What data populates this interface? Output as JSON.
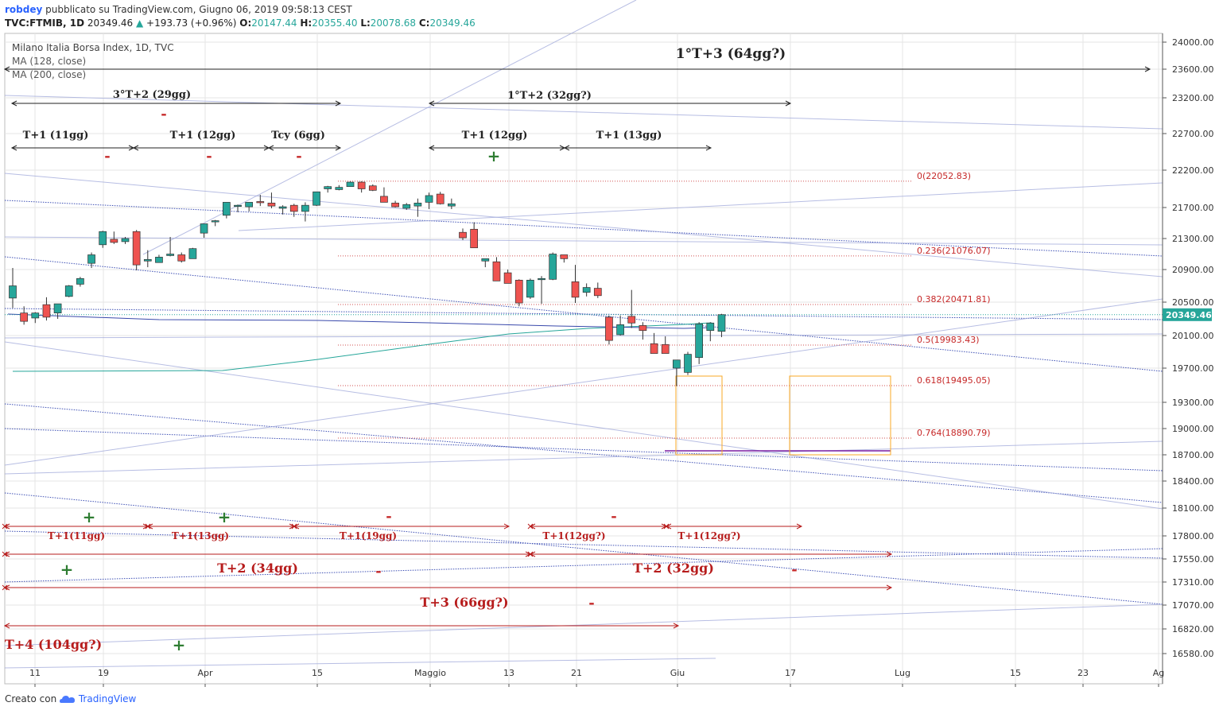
{
  "header": {
    "username": "robdey",
    "published": "pubblicato su TradingView.com, Giugno 06, 2019 09:58:13 CEST",
    "symbol": "TVC:FTMIB, 1D",
    "last": "20349.46",
    "change": "+193.73 (+0.96%)",
    "o_label": "O:",
    "o_value": "20147.44",
    "h_label": "H:",
    "h_value": "20355.40",
    "l_label": "L:",
    "l_value": "20078.68",
    "c_label": "C:",
    "c_value": "20349.46"
  },
  "legend": {
    "title": "Milano Italia Borsa Index, 1D, TVC",
    "ma1": "MA (128, close)",
    "ma2": "MA (200, close)"
  },
  "footer": {
    "created": "Creato con",
    "brand": "TradingView"
  },
  "colors": {
    "up": "#26a69a",
    "down": "#ef5350",
    "grid": "#e6e6e6",
    "fib": "#c62828",
    "trendline": "#3f51b5",
    "ma128": "#26a69a",
    "ma200": "#3949ab",
    "box": "#f9a825",
    "price_tag": "#26a69a",
    "cycle_red": "#b71c1c",
    "plus": "#2e7d32"
  },
  "chart_data": {
    "type": "candlestick",
    "title": "Milano Italia Borsa Index, 1D, TVC",
    "y_range": [
      16400,
      24100
    ],
    "y_ticks": [
      24000,
      23600,
      23200,
      22700,
      22200,
      21700,
      21300,
      20900,
      20500,
      20100,
      19700,
      19300,
      19000,
      18700,
      18400,
      18100,
      17800,
      17550,
      17310,
      17070,
      16820,
      16580
    ],
    "x_labels": [
      {
        "label": "11",
        "x": 44
      },
      {
        "label": "19",
        "x": 130
      },
      {
        "label": "Apr",
        "x": 258
      },
      {
        "label": "15",
        "x": 399
      },
      {
        "label": "Maggio",
        "x": 541
      },
      {
        "label": "13",
        "x": 640
      },
      {
        "label": "21",
        "x": 725
      },
      {
        "label": "Giu",
        "x": 852
      },
      {
        "label": "17",
        "x": 994
      },
      {
        "label": "Lug",
        "x": 1135
      },
      {
        "label": "15",
        "x": 1277
      },
      {
        "label": "23",
        "x": 1362
      },
      {
        "label": "Ag",
        "x": 1457
      }
    ],
    "last_price": "20349.46",
    "candles": [
      [
        20550,
        20920,
        20430,
        20700
      ],
      [
        20370,
        20450,
        20230,
        20270
      ],
      [
        20310,
        20380,
        20250,
        20370
      ],
      [
        20470,
        20560,
        20280,
        20320
      ],
      [
        20370,
        20480,
        20300,
        20480
      ],
      [
        20570,
        20710,
        20560,
        20700
      ],
      [
        20720,
        20810,
        20690,
        20790
      ],
      [
        20980,
        21120,
        20920,
        21090
      ],
      [
        21220,
        21400,
        21180,
        21390
      ],
      [
        21290,
        21390,
        21230,
        21250
      ],
      [
        21260,
        21320,
        21230,
        21300
      ],
      [
        21390,
        21410,
        20890,
        20960
      ],
      [
        21010,
        21150,
        20930,
        21030
      ],
      [
        20990,
        21090,
        20990,
        21060
      ],
      [
        21080,
        21320,
        21070,
        21100
      ],
      [
        21090,
        21120,
        20990,
        21010
      ],
      [
        21040,
        21180,
        21040,
        21170
      ],
      [
        21370,
        21450,
        21310,
        21490
      ],
      [
        21520,
        21540,
        21460,
        21530
      ],
      [
        21600,
        21760,
        21560,
        21770
      ],
      [
        21720,
        21740,
        21640,
        21730
      ],
      [
        21710,
        21770,
        21650,
        21770
      ],
      [
        21780,
        21870,
        21720,
        21770
      ],
      [
        21760,
        21900,
        21690,
        21720
      ],
      [
        21690,
        21730,
        21610,
        21710
      ],
      [
        21730,
        21750,
        21580,
        21650
      ],
      [
        21650,
        21770,
        21520,
        21730
      ],
      [
        21730,
        21900,
        21720,
        21910
      ],
      [
        21950,
        21990,
        21900,
        21980
      ],
      [
        21940,
        22000,
        21930,
        21970
      ],
      [
        21980,
        22050,
        21980,
        22040
      ],
      [
        22040,
        22050,
        21900,
        21950
      ],
      [
        21990,
        22010,
        21920,
        21930
      ],
      [
        21850,
        21970,
        21830,
        21770
      ],
      [
        21760,
        21790,
        21700,
        21710
      ],
      [
        21690,
        21760,
        21670,
        21740
      ],
      [
        21720,
        21820,
        21580,
        21760
      ],
      [
        21770,
        21900,
        21680,
        21860
      ],
      [
        21880,
        21910,
        21740,
        21750
      ],
      [
        21720,
        21820,
        21680,
        21750
      ],
      [
        21380,
        21430,
        21280,
        21310
      ],
      [
        21420,
        21510,
        21190,
        21180
      ],
      [
        21010,
        21030,
        20930,
        21040
      ],
      [
        21000,
        21060,
        20760,
        20760
      ],
      [
        20860,
        20900,
        20730,
        20730
      ],
      [
        20770,
        20780,
        20450,
        20490
      ],
      [
        20560,
        20790,
        20540,
        20770
      ],
      [
        20790,
        20820,
        20480,
        20790
      ],
      [
        20780,
        21120,
        20770,
        21100
      ],
      [
        21090,
        21080,
        20990,
        21040
      ],
      [
        20750,
        20960,
        20490,
        20560
      ],
      [
        20620,
        20730,
        20570,
        20680
      ],
      [
        20670,
        20740,
        20550,
        20580
      ],
      [
        20320,
        20340,
        19990,
        20040
      ],
      [
        20110,
        20340,
        20100,
        20230
      ],
      [
        20330,
        20650,
        20190,
        20250
      ],
      [
        20220,
        20260,
        20050,
        20160
      ],
      [
        20000,
        20130,
        19920,
        19880
      ],
      [
        19990,
        20090,
        19890,
        19880
      ],
      [
        19700,
        19780,
        19490,
        19800
      ],
      [
        19650,
        19900,
        19620,
        19870
      ],
      [
        19830,
        20260,
        19750,
        20240
      ],
      [
        20160,
        20260,
        20030,
        20250
      ],
      [
        20150,
        20360,
        20080,
        20350
      ]
    ],
    "fib_levels": [
      {
        "label": "0(22052.83)",
        "value": 22052.83
      },
      {
        "label": "0.236(21076.07)",
        "value": 21076.07
      },
      {
        "label": "0.382(20471.81)",
        "value": 20471.81
      },
      {
        "label": "0.5(19983.43)",
        "value": 19983.43
      },
      {
        "label": "0.618(19495.05)",
        "value": 19495.05
      },
      {
        "label": "0.764(18890.79)",
        "value": 18890.79
      }
    ],
    "cycle_annotations_top": [
      "1°T+3 (64gg?)",
      "3°T+2 (29gg)",
      "1°T+2 (32gg?)",
      "T+1 (11gg)",
      "T+1 (12gg)",
      "Tcy (6gg)",
      "T+1 (12gg)",
      "T+1 (13gg)"
    ],
    "cycle_annotations_bottom": [
      "T+1(11gg)",
      "T+1(13gg)",
      "T+1(19gg)",
      "T+1(12gg?)",
      "T+1(12gg?)",
      "T+2 (34gg)",
      "T+2 (32gg)",
      "T+3 (66gg?)",
      "T+4 (104gg?)"
    ],
    "signs": [
      "-",
      "+"
    ],
    "grid": true
  }
}
